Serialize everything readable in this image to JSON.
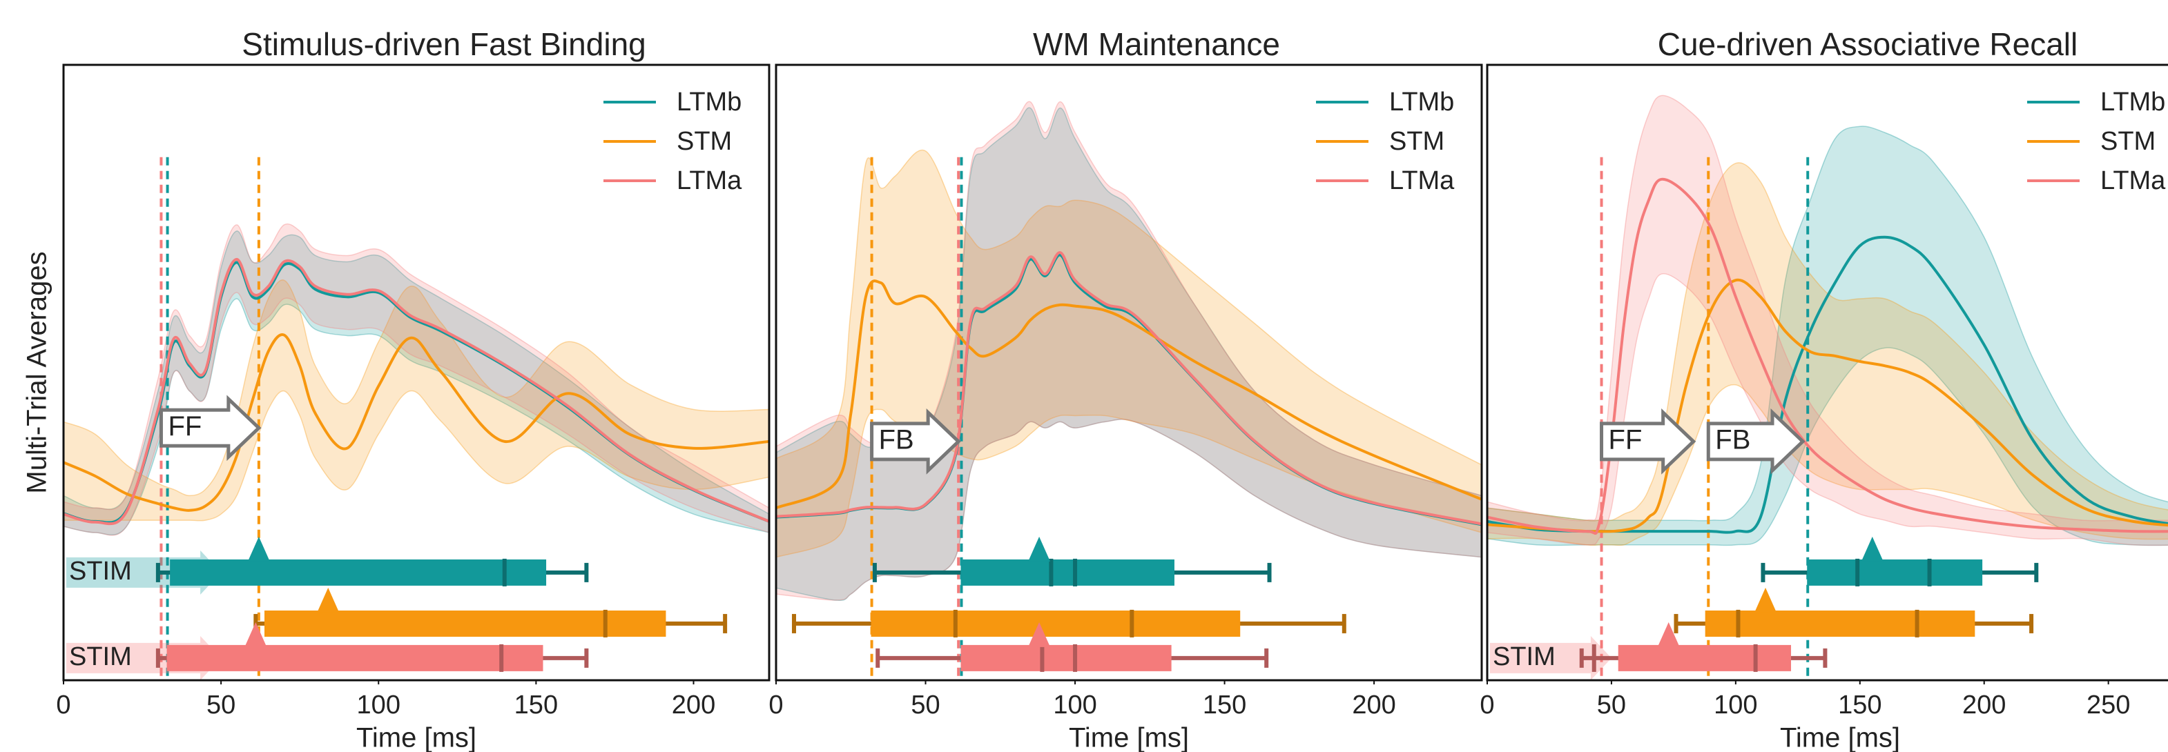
{
  "chart_data": [
    {
      "type": "line",
      "title": "Stimulus-driven Fast Binding",
      "xlabel": "Time [ms]",
      "ylabel": "Multi-Trial Averages",
      "xlim": [
        0,
        224
      ],
      "xticks": [
        0,
        50,
        100,
        150,
        200
      ],
      "ylim": [
        0,
        1
      ],
      "x": [
        0,
        10,
        20,
        30,
        35,
        40,
        45,
        50,
        55,
        60,
        65,
        70,
        75,
        80,
        90,
        100,
        110,
        120,
        140,
        160,
        180,
        200,
        224
      ],
      "series": [
        {
          "name": "LTMb",
          "color": "#12999a",
          "values": [
            0.271,
            0.258,
            0.276,
            0.433,
            0.549,
            0.511,
            0.5,
            0.623,
            0.679,
            0.623,
            0.635,
            0.675,
            0.668,
            0.635,
            0.623,
            0.63,
            0.59,
            0.567,
            0.511,
            0.444,
            0.365,
            0.309,
            0.258
          ],
          "lower": [
            0.25,
            0.24,
            0.25,
            0.38,
            0.5,
            0.47,
            0.46,
            0.57,
            0.62,
            0.57,
            0.58,
            0.61,
            0.6,
            0.57,
            0.56,
            0.56,
            0.52,
            0.5,
            0.45,
            0.39,
            0.32,
            0.27,
            0.24
          ],
          "upper": [
            0.3,
            0.28,
            0.3,
            0.47,
            0.59,
            0.55,
            0.54,
            0.67,
            0.73,
            0.68,
            0.69,
            0.72,
            0.72,
            0.69,
            0.68,
            0.69,
            0.65,
            0.62,
            0.56,
            0.49,
            0.41,
            0.34,
            0.27
          ],
          "timeline": {
            "whisker": [
              30,
              166
            ],
            "box": [
              34,
              153
            ],
            "ticks": [
              140
            ],
            "peak": 62
          },
          "stim_label": "STIM"
        },
        {
          "name": "STM",
          "color": "#f7970f",
          "values": [
            0.354,
            0.332,
            0.303,
            0.287,
            0.28,
            0.276,
            0.283,
            0.309,
            0.365,
            0.455,
            0.534,
            0.561,
            0.511,
            0.433,
            0.377,
            0.478,
            0.556,
            0.5,
            0.388,
            0.466,
            0.399,
            0.377,
            0.388
          ],
          "lower": [
            0.26,
            0.26,
            0.26,
            0.26,
            0.26,
            0.26,
            0.26,
            0.27,
            0.3,
            0.37,
            0.44,
            0.47,
            0.43,
            0.36,
            0.31,
            0.4,
            0.47,
            0.42,
            0.32,
            0.38,
            0.33,
            0.31,
            0.33
          ],
          "upper": [
            0.42,
            0.4,
            0.35,
            0.32,
            0.31,
            0.3,
            0.31,
            0.35,
            0.43,
            0.54,
            0.62,
            0.65,
            0.6,
            0.51,
            0.45,
            0.55,
            0.64,
            0.58,
            0.46,
            0.55,
            0.48,
            0.44,
            0.44
          ],
          "timeline": {
            "whisker": [
              61,
              210
            ],
            "box": [
              64,
              191
            ],
            "ticks": [
              172
            ],
            "peak": 84
          }
        },
        {
          "name": "LTMa",
          "color": "#f47b7b",
          "values": [
            0.27,
            0.257,
            0.274,
            0.44,
            0.555,
            0.515,
            0.503,
            0.628,
            0.684,
            0.628,
            0.64,
            0.68,
            0.672,
            0.64,
            0.627,
            0.633,
            0.593,
            0.57,
            0.513,
            0.446,
            0.366,
            0.31,
            0.258
          ],
          "lower": [
            0.25,
            0.24,
            0.25,
            0.39,
            0.5,
            0.47,
            0.46,
            0.58,
            0.63,
            0.58,
            0.59,
            0.62,
            0.61,
            0.58,
            0.57,
            0.57,
            0.53,
            0.51,
            0.46,
            0.4,
            0.33,
            0.28,
            0.24
          ],
          "upper": [
            0.29,
            0.28,
            0.3,
            0.49,
            0.6,
            0.56,
            0.55,
            0.68,
            0.74,
            0.68,
            0.7,
            0.74,
            0.73,
            0.7,
            0.69,
            0.7,
            0.66,
            0.63,
            0.57,
            0.5,
            0.41,
            0.35,
            0.28
          ],
          "timeline": {
            "whisker": [
              30,
              166
            ],
            "box": [
              33,
              152
            ],
            "ticks": [
              139
            ],
            "peak": 61
          },
          "stim_label": "STIM"
        }
      ],
      "vlines": [
        {
          "x": 33,
          "color": "#12999a"
        },
        {
          "x": 31,
          "color": "#f47b7b"
        },
        {
          "x": 62,
          "color": "#f7970f"
        }
      ],
      "arrows": [
        {
          "label": "FF",
          "x0": 31,
          "x1": 62,
          "y": 0.41
        }
      ]
    },
    {
      "type": "line",
      "title": "WM Maintenance",
      "xlabel": "Time [ms]",
      "xlim": [
        0,
        236
      ],
      "xticks": [
        0,
        50,
        100,
        150,
        200
      ],
      "ylim": [
        0,
        1
      ],
      "x": [
        0,
        20,
        25,
        30,
        35,
        40,
        50,
        60,
        65,
        70,
        80,
        85,
        90,
        95,
        100,
        110,
        120,
        140,
        160,
        180,
        200,
        236
      ],
      "series": [
        {
          "name": "LTMb",
          "color": "#12999a",
          "values": [
            0.265,
            0.271,
            0.276,
            0.28,
            0.28,
            0.28,
            0.285,
            0.365,
            0.578,
            0.601,
            0.635,
            0.684,
            0.657,
            0.691,
            0.646,
            0.608,
            0.59,
            0.489,
            0.388,
            0.321,
            0.287,
            0.253
          ],
          "lower": [
            0.15,
            0.13,
            0.14,
            0.16,
            0.17,
            0.17,
            0.17,
            0.2,
            0.34,
            0.38,
            0.4,
            0.42,
            0.41,
            0.42,
            0.41,
            0.42,
            0.42,
            0.37,
            0.3,
            0.25,
            0.22,
            0.2
          ],
          "upper": [
            0.37,
            0.42,
            0.4,
            0.38,
            0.38,
            0.38,
            0.4,
            0.55,
            0.82,
            0.86,
            0.9,
            0.93,
            0.88,
            0.93,
            0.88,
            0.8,
            0.76,
            0.61,
            0.47,
            0.39,
            0.35,
            0.3
          ],
          "timeline": {
            "whisker": [
              33,
              165
            ],
            "box": [
              62,
              133
            ],
            "ticks": [
              92,
              100
            ],
            "peak": 88
          }
        },
        {
          "name": "STM",
          "color": "#f7970f",
          "values": [
            0.28,
            0.321,
            0.433,
            0.623,
            0.646,
            0.612,
            0.623,
            0.567,
            0.54,
            0.527,
            0.556,
            0.585,
            0.603,
            0.61,
            0.608,
            0.601,
            0.578,
            0.518,
            0.466,
            0.41,
            0.365,
            0.294
          ],
          "lower": [
            0.2,
            0.23,
            0.3,
            0.42,
            0.44,
            0.42,
            0.4,
            0.37,
            0.36,
            0.36,
            0.38,
            0.4,
            0.42,
            0.43,
            0.43,
            0.43,
            0.42,
            0.4,
            0.36,
            0.32,
            0.29,
            0.24
          ],
          "upper": [
            0.36,
            0.42,
            0.6,
            0.84,
            0.8,
            0.82,
            0.86,
            0.76,
            0.72,
            0.7,
            0.72,
            0.75,
            0.77,
            0.77,
            0.78,
            0.77,
            0.74,
            0.66,
            0.58,
            0.5,
            0.44,
            0.35
          ],
          "timeline": {
            "whisker": [
              6,
              190
            ],
            "box": [
              32,
              155
            ],
            "ticks": [
              60,
              119
            ],
            "peak": null
          }
        },
        {
          "name": "LTMa",
          "color": "#f47b7b",
          "values": [
            0.266,
            0.272,
            0.277,
            0.281,
            0.281,
            0.281,
            0.286,
            0.368,
            0.582,
            0.605,
            0.64,
            0.688,
            0.66,
            0.695,
            0.65,
            0.612,
            0.593,
            0.49,
            0.389,
            0.322,
            0.288,
            0.254
          ],
          "lower": [
            0.14,
            0.13,
            0.14,
            0.16,
            0.17,
            0.17,
            0.17,
            0.2,
            0.34,
            0.38,
            0.4,
            0.42,
            0.41,
            0.42,
            0.41,
            0.42,
            0.42,
            0.37,
            0.3,
            0.25,
            0.22,
            0.2
          ],
          "upper": [
            0.38,
            0.43,
            0.41,
            0.39,
            0.38,
            0.38,
            0.4,
            0.56,
            0.83,
            0.87,
            0.91,
            0.94,
            0.89,
            0.94,
            0.89,
            0.81,
            0.77,
            0.61,
            0.47,
            0.39,
            0.35,
            0.3
          ],
          "timeline": {
            "whisker": [
              34,
              164
            ],
            "box": [
              62,
              132
            ],
            "ticks": [
              89,
              100
            ],
            "peak": 88
          }
        }
      ],
      "vlines": [
        {
          "x": 32,
          "color": "#f7970f"
        },
        {
          "x": 62,
          "color": "#12999a"
        },
        {
          "x": 61,
          "color": "#f47b7b"
        }
      ],
      "arrows": [
        {
          "label": "FB",
          "x0": 32,
          "x1": 61,
          "y": 0.388
        }
      ]
    },
    {
      "type": "line",
      "title": "Cue-driven Associative Recall",
      "xlabel": "Time [ms]",
      "xlim": [
        0,
        284
      ],
      "xticks": [
        0,
        50,
        100,
        150,
        200,
        250
      ],
      "ylim": [
        0,
        1
      ],
      "x": [
        0,
        20,
        40,
        45,
        50,
        55,
        60,
        65,
        70,
        80,
        90,
        100,
        110,
        120,
        130,
        140,
        150,
        160,
        170,
        180,
        200,
        220,
        240,
        260,
        284
      ],
      "series": [
        {
          "name": "LTMb",
          "color": "#12999a",
          "values": [
            0.258,
            0.245,
            0.242,
            0.242,
            0.242,
            0.242,
            0.242,
            0.242,
            0.242,
            0.242,
            0.242,
            0.242,
            0.265,
            0.455,
            0.567,
            0.646,
            0.706,
            0.72,
            0.706,
            0.668,
            0.545,
            0.388,
            0.298,
            0.265,
            0.249
          ],
          "lower": [
            0.23,
            0.22,
            0.22,
            0.22,
            0.22,
            0.22,
            0.22,
            0.22,
            0.22,
            0.22,
            0.22,
            0.22,
            0.23,
            0.3,
            0.4,
            0.47,
            0.52,
            0.54,
            0.53,
            0.5,
            0.4,
            0.28,
            0.23,
            0.22,
            0.22
          ],
          "upper": [
            0.28,
            0.27,
            0.26,
            0.26,
            0.26,
            0.26,
            0.26,
            0.26,
            0.26,
            0.26,
            0.26,
            0.27,
            0.35,
            0.65,
            0.78,
            0.88,
            0.9,
            0.89,
            0.87,
            0.84,
            0.72,
            0.52,
            0.38,
            0.31,
            0.28
          ],
          "timeline": {
            "whisker": [
              111,
              221
            ],
            "box": [
              129,
              199
            ],
            "ticks": [
              149,
              178
            ],
            "peak": 155
          }
        },
        {
          "name": "STM",
          "color": "#f7970f",
          "values": [
            0.253,
            0.247,
            0.242,
            0.242,
            0.242,
            0.244,
            0.249,
            0.265,
            0.298,
            0.478,
            0.601,
            0.65,
            0.623,
            0.567,
            0.534,
            0.527,
            0.518,
            0.511,
            0.5,
            0.478,
            0.41,
            0.332,
            0.28,
            0.258,
            0.249
          ],
          "lower": [
            0.23,
            0.23,
            0.22,
            0.22,
            0.22,
            0.22,
            0.23,
            0.24,
            0.26,
            0.35,
            0.45,
            0.48,
            0.44,
            0.38,
            0.34,
            0.32,
            0.31,
            0.31,
            0.31,
            0.31,
            0.29,
            0.26,
            0.24,
            0.23,
            0.23
          ],
          "upper": [
            0.28,
            0.27,
            0.26,
            0.26,
            0.26,
            0.27,
            0.28,
            0.31,
            0.38,
            0.63,
            0.78,
            0.84,
            0.81,
            0.72,
            0.66,
            0.62,
            0.62,
            0.62,
            0.6,
            0.58,
            0.5,
            0.4,
            0.33,
            0.29,
            0.27
          ],
          "timeline": {
            "whisker": [
              76,
              219
            ],
            "box": [
              88,
              196
            ],
            "ticks": [
              101,
              173
            ],
            "peak": 112
          }
        },
        {
          "name": "LTMa",
          "color": "#f47b7b",
          "values": [
            0.265,
            0.249,
            0.242,
            0.253,
            0.388,
            0.578,
            0.713,
            0.78,
            0.814,
            0.791,
            0.735,
            0.623,
            0.522,
            0.433,
            0.377,
            0.343,
            0.316,
            0.294,
            0.28,
            0.271,
            0.258,
            0.249,
            0.245,
            0.242,
            0.242
          ],
          "lower": [
            0.24,
            0.23,
            0.22,
            0.23,
            0.28,
            0.42,
            0.55,
            0.62,
            0.66,
            0.64,
            0.59,
            0.5,
            0.42,
            0.35,
            0.31,
            0.29,
            0.27,
            0.26,
            0.25,
            0.25,
            0.24,
            0.23,
            0.23,
            0.22,
            0.22
          ],
          "upper": [
            0.29,
            0.27,
            0.26,
            0.29,
            0.5,
            0.72,
            0.85,
            0.92,
            0.95,
            0.93,
            0.88,
            0.75,
            0.64,
            0.53,
            0.45,
            0.4,
            0.36,
            0.33,
            0.31,
            0.3,
            0.28,
            0.27,
            0.26,
            0.26,
            0.26
          ],
          "timeline": {
            "whisker": [
              38,
              136
            ],
            "box": [
              53,
              122
            ],
            "ticks": [
              43,
              108
            ],
            "peak": 73
          },
          "stim_label": "STIM"
        }
      ],
      "vlines": [
        {
          "x": 46,
          "color": "#f47b7b"
        },
        {
          "x": 89,
          "color": "#f7970f"
        },
        {
          "x": 129,
          "color": "#12999a"
        }
      ],
      "arrows": [
        {
          "label": "FF",
          "x0": 46,
          "x1": 83,
          "y": 0.388
        },
        {
          "label": "FB",
          "x0": 89,
          "x1": 127,
          "y": 0.388
        }
      ]
    }
  ]
}
